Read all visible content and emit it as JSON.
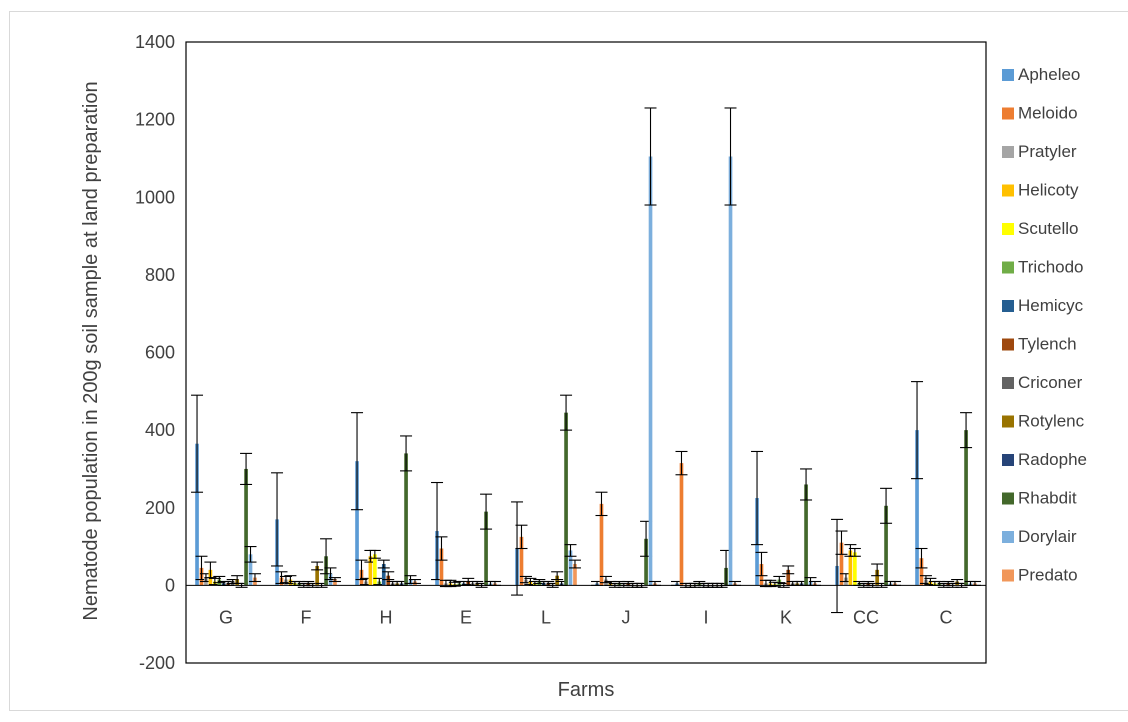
{
  "chart_data": {
    "type": "bar",
    "title": "",
    "xlabel": "Farms",
    "ylabel": "Nematode population in 200g soil sample at land preparation",
    "ylim": [
      -200,
      1400
    ],
    "yticks": [
      "-200",
      "0",
      "200",
      "400",
      "600",
      "800",
      "1000",
      "1200",
      "1400"
    ],
    "grid": false,
    "legend_position": "right",
    "error_bars": true,
    "categories": [
      "G",
      "F",
      "H",
      "E",
      "L",
      "J",
      "I",
      "K",
      "CC",
      "C"
    ],
    "series": [
      {
        "name": "Apheleo",
        "color": "#5b9bd5",
        "values": [
          365,
          170,
          320,
          140,
          95,
          5,
          5,
          225,
          50,
          400
        ],
        "errors": [
          125,
          120,
          125,
          125,
          120,
          5,
          5,
          120,
          120,
          125
        ]
      },
      {
        "name": "Meloido",
        "color": "#ed7d31",
        "values": [
          45,
          20,
          40,
          95,
          125,
          210,
          315,
          55,
          110,
          70
        ],
        "errors": [
          30,
          15,
          25,
          30,
          30,
          30,
          30,
          30,
          30,
          25
        ]
      },
      {
        "name": "Pratyler",
        "color": "#a5a5a5",
        "values": [
          20,
          15,
          10,
          5,
          15,
          15,
          0,
          5,
          20,
          15
        ],
        "errors": [
          10,
          8,
          8,
          8,
          8,
          8,
          5,
          8,
          10,
          10
        ]
      },
      {
        "name": "Helicoty",
        "color": "#ffc000",
        "values": [
          40,
          15,
          75,
          5,
          10,
          5,
          0,
          5,
          90,
          10
        ],
        "errors": [
          20,
          10,
          15,
          8,
          8,
          5,
          5,
          8,
          15,
          8
        ]
      },
      {
        "name": "Scutello",
        "color": "#ffff00",
        "values": [
          10,
          5,
          80,
          3,
          5,
          0,
          0,
          3,
          85,
          5
        ],
        "errors": [
          8,
          5,
          10,
          5,
          5,
          5,
          5,
          5,
          10,
          5
        ]
      },
      {
        "name": "Trichodo",
        "color": "#70ad47",
        "values": [
          15,
          5,
          10,
          5,
          10,
          5,
          5,
          15,
          5,
          5
        ],
        "errors": [
          8,
          5,
          8,
          5,
          5,
          5,
          5,
          8,
          5,
          5
        ]
      },
      {
        "name": "Hemicyc",
        "color": "#255e91",
        "values": [
          5,
          0,
          55,
          5,
          5,
          0,
          0,
          0,
          0,
          0
        ],
        "errors": [
          5,
          5,
          10,
          5,
          5,
          5,
          5,
          5,
          5,
          5
        ]
      },
      {
        "name": "Tylench",
        "color": "#9e480e",
        "values": [
          5,
          5,
          25,
          10,
          5,
          5,
          0,
          40,
          5,
          5
        ],
        "errors": [
          5,
          5,
          10,
          8,
          5,
          5,
          5,
          10,
          5,
          5
        ]
      },
      {
        "name": "Criconer",
        "color": "#636363",
        "values": [
          10,
          0,
          5,
          5,
          0,
          0,
          0,
          5,
          0,
          0
        ],
        "errors": [
          5,
          5,
          5,
          5,
          5,
          5,
          5,
          5,
          5,
          5
        ]
      },
      {
        "name": "Rotylenc",
        "color": "#997300",
        "values": [
          15,
          50,
          5,
          5,
          25,
          0,
          0,
          5,
          40,
          10
        ],
        "errors": [
          10,
          10,
          5,
          5,
          10,
          5,
          5,
          5,
          15,
          5
        ]
      },
      {
        "name": "Radophe",
        "color": "#264478",
        "values": [
          0,
          0,
          5,
          0,
          5,
          0,
          0,
          5,
          0,
          0
        ],
        "errors": [
          5,
          5,
          5,
          5,
          5,
          5,
          5,
          5,
          5,
          5
        ]
      },
      {
        "name": "Rhabdit",
        "color": "#43682b",
        "values": [
          300,
          75,
          340,
          190,
          445,
          120,
          45,
          260,
          205,
          400
        ],
        "errors": [
          40,
          45,
          45,
          45,
          45,
          45,
          45,
          40,
          45,
          45
        ]
      },
      {
        "name": "Dorylair",
        "color": "#7cafdd",
        "values": [
          80,
          30,
          15,
          5,
          90,
          1105,
          1105,
          10,
          5,
          5
        ],
        "errors": [
          20,
          15,
          10,
          5,
          15,
          125,
          125,
          10,
          5,
          5
        ]
      },
      {
        "name": "Predato",
        "color": "#f1975a",
        "values": [
          20,
          15,
          10,
          5,
          55,
          5,
          5,
          5,
          5,
          5
        ],
        "errors": [
          10,
          5,
          5,
          5,
          10,
          5,
          5,
          5,
          5,
          5
        ]
      }
    ]
  }
}
